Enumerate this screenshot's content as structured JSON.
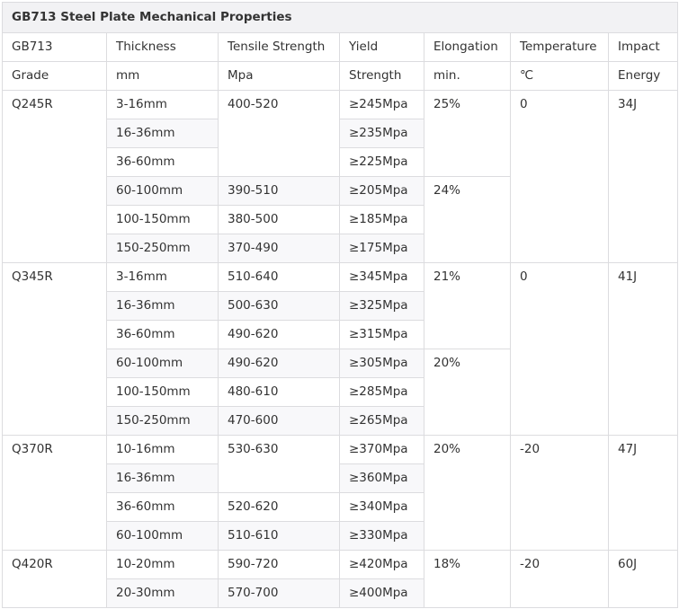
{
  "title": "GB713 Steel Plate Mechanical Properties",
  "header": [
    [
      "GB713",
      "Thickness",
      "Tensile Strength",
      "Yield",
      "Elongation",
      "Temperature",
      "Impact"
    ],
    [
      "Grade",
      "mm",
      "Mpa",
      "Strength",
      "min.",
      "℃",
      "Energy"
    ]
  ],
  "table": {
    "rows": [
      [
        "Q245R",
        "3-16mm",
        "400-520",
        "≥245Mpa",
        "25%",
        "0",
        "34J"
      ],
      [
        "16-36mm",
        "≥235Mpa"
      ],
      [
        "36-60mm",
        "≥225Mpa"
      ],
      [
        "60-100mm",
        "390-510",
        "≥205Mpa",
        "24%"
      ],
      [
        "100-150mm",
        "380-500",
        "≥185Mpa"
      ],
      [
        "150-250mm",
        "370-490",
        "≥175Mpa"
      ],
      [
        "Q345R",
        "3-16mm",
        "510-640",
        "≥345Mpa",
        "21%",
        "0",
        "41J"
      ],
      [
        "16-36mm",
        "500-630",
        "≥325Mpa"
      ],
      [
        "36-60mm",
        "490-620",
        "≥315Mpa"
      ],
      [
        "60-100mm",
        "490-620",
        "≥305Mpa",
        "20%"
      ],
      [
        "100-150mm",
        "480-610",
        "≥285Mpa"
      ],
      [
        "150-250mm",
        "470-600",
        "≥265Mpa"
      ],
      [
        "Q370R",
        "10-16mm",
        "530-630",
        "≥370Mpa",
        "20%",
        "-20",
        "47J"
      ],
      [
        "16-36mm",
        "≥360Mpa"
      ],
      [
        "36-60mm",
        "520-620",
        "≥340Mpa"
      ],
      [
        "60-100mm",
        "510-610",
        "≥330Mpa"
      ],
      [
        "Q420R",
        "10-20mm",
        "590-720",
        "≥420Mpa",
        "18%",
        "-20",
        "60J"
      ],
      [
        "20-30mm",
        "570-700",
        "≥400Mpa"
      ]
    ]
  }
}
